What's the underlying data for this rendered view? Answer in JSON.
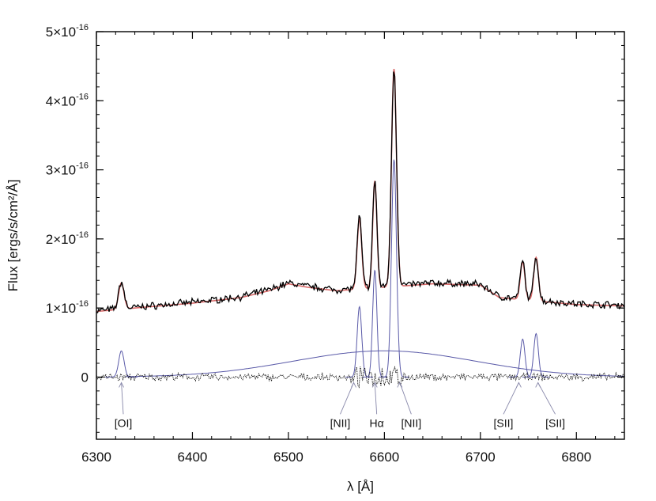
{
  "chart_data": {
    "type": "line",
    "title": "",
    "xlabel": "λ [Å]",
    "ylabel": "Flux [ergs/s/cm²/Å]",
    "xlim": [
      6300,
      6850
    ],
    "ylim": [
      -9e-17,
      5e-16
    ],
    "x_ticks": [
      6300,
      6400,
      6500,
      6600,
      6700,
      6800
    ],
    "y_ticks": [
      {
        "value": 0,
        "label": "0"
      },
      {
        "value": 1e-16,
        "label": "1×10",
        "exp": "-16"
      },
      {
        "value": 2e-16,
        "label": "2×10",
        "exp": "-16"
      },
      {
        "value": 3e-16,
        "label": "3×10",
        "exp": "-16"
      },
      {
        "value": 4e-16,
        "label": "4×10",
        "exp": "-16"
      },
      {
        "value": 5e-16,
        "label": "5×10",
        "exp": "-16"
      }
    ],
    "colors": {
      "observed": "#000000",
      "fit": "#d96a6a",
      "components": "#5a5aa8",
      "residuals": "#000000",
      "arrows": "#8888aa"
    },
    "continuum": [
      [
        6300,
        9.5e-17
      ],
      [
        6340,
        1e-16
      ],
      [
        6400,
        1.07e-16
      ],
      [
        6450,
        1.15e-16
      ],
      [
        6480,
        1.25e-16
      ],
      [
        6500,
        1.35e-16
      ],
      [
        6520,
        1.3e-16
      ],
      [
        6550,
        1.25e-16
      ],
      [
        6600,
        1.3e-16
      ],
      [
        6650,
        1.35e-16
      ],
      [
        6700,
        1.33e-16
      ],
      [
        6720,
        1.15e-16
      ],
      [
        6760,
        1.1e-16
      ],
      [
        6800,
        1.05e-16
      ],
      [
        6850,
        1.03e-16
      ]
    ],
    "broad_component": {
      "center": 6600,
      "amplitude": 3.8e-17,
      "sigma": 95
    },
    "emission_lines": [
      {
        "name": "[OI]",
        "center": 6326,
        "amplitude": 3.8e-17,
        "sigma": 2.8,
        "label_x": 6328,
        "arrow_x": 6326
      },
      {
        "name": "[NII]",
        "center": 6574,
        "amplitude": 1.02e-16,
        "sigma": 2.4,
        "label_x": 6554,
        "arrow_x": 6568
      },
      {
        "name": "Hα",
        "center": 6590,
        "amplitude": 1.55e-16,
        "sigma": 2.2,
        "label_x": 6592,
        "arrow_x": 6590
      },
      {
        "name": "[NII]",
        "center": 6610,
        "amplitude": 3.15e-16,
        "sigma": 2.6,
        "label_x": 6628,
        "arrow_x": 6616
      },
      {
        "name": "[SII]",
        "center": 6744,
        "amplitude": 5.5e-17,
        "sigma": 2.4,
        "label_x": 6724,
        "arrow_x": 6740
      },
      {
        "name": "[SII]",
        "center": 6758,
        "amplitude": 6.3e-17,
        "sigma": 2.4,
        "label_x": 6778,
        "arrow_x": 6760
      }
    ],
    "label_y": -7.2e-17
  }
}
